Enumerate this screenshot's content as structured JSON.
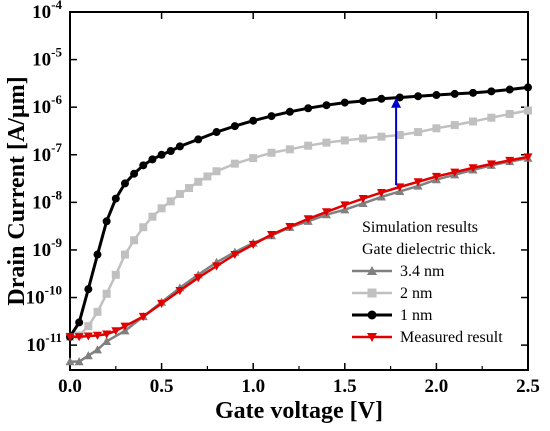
{
  "chart_data": {
    "type": "line",
    "title": "",
    "xlabel": "Gate voltage [V]",
    "ylabel": "Drain Current [A/μm]",
    "xlim": [
      0.0,
      2.5
    ],
    "ylim": [
      3e-12,
      0.0001
    ],
    "yscale": "log",
    "x_ticks": [
      0.0,
      0.5,
      1.0,
      1.5,
      2.0,
      2.5
    ],
    "x_tick_labels": [
      "0.0",
      "0.5",
      "1.0",
      "1.5",
      "2.0",
      "2.5"
    ],
    "y_ticks": [
      -11,
      -10,
      -9,
      -8,
      -7,
      -6,
      -5,
      -4
    ],
    "y_tick_labels": [
      {
        "base": "10",
        "exp": "-11"
      },
      {
        "base": "10",
        "exp": "-10"
      },
      {
        "base": "10",
        "exp": "-9"
      },
      {
        "base": "10",
        "exp": "-8"
      },
      {
        "base": "10",
        "exp": "-7"
      },
      {
        "base": "10",
        "exp": "-6"
      },
      {
        "base": "10",
        "exp": "-5"
      },
      {
        "base": "10",
        "exp": "-4"
      }
    ],
    "grid": false,
    "legend": {
      "placement": "bottom-right",
      "heading": [
        "Simulation results",
        "Gate dielectric thick."
      ]
    },
    "series": [
      {
        "name": "3.4 nm",
        "color": "#808080",
        "marker": "triangle-up",
        "x": [
          0.0,
          0.05,
          0.1,
          0.15,
          0.2,
          0.3,
          0.4,
          0.5,
          0.6,
          0.7,
          0.8,
          0.9,
          1.0,
          1.1,
          1.2,
          1.3,
          1.4,
          1.5,
          1.6,
          1.7,
          1.8,
          1.9,
          2.0,
          2.1,
          2.2,
          2.3,
          2.4,
          2.5
        ],
        "y": [
          4.5e-12,
          4.5e-12,
          6e-12,
          8e-12,
          1.2e-11,
          2e-11,
          4e-11,
          8e-11,
          1.6e-10,
          3e-10,
          5.5e-10,
          9e-10,
          1.4e-09,
          2e-09,
          3e-09,
          4e-09,
          5.5e-09,
          7e-09,
          9.5e-09,
          1.3e-08,
          1.7e-08,
          2.2e-08,
          3e-08,
          3.8e-08,
          4.8e-08,
          6e-08,
          7.2e-08,
          8.5e-08
        ]
      },
      {
        "name": "2 nm",
        "color": "#c0c0c0",
        "marker": "square",
        "x": [
          0.0,
          0.05,
          0.1,
          0.15,
          0.2,
          0.25,
          0.3,
          0.35,
          0.4,
          0.45,
          0.5,
          0.55,
          0.6,
          0.65,
          0.7,
          0.75,
          0.8,
          0.9,
          1.0,
          1.1,
          1.2,
          1.3,
          1.4,
          1.5,
          1.6,
          1.7,
          1.8,
          1.9,
          2.0,
          2.1,
          2.2,
          2.3,
          2.4,
          2.5
        ],
        "y": [
          1.5e-11,
          1.6e-11,
          2.5e-11,
          5e-11,
          1.2e-10,
          3e-10,
          8e-10,
          1.6e-09,
          3e-09,
          5e-09,
          7.5e-09,
          1.05e-08,
          1.5e-08,
          2e-08,
          2.7e-08,
          3.5e-08,
          4.5e-08,
          6.5e-08,
          8.5e-08,
          1.1e-07,
          1.3e-07,
          1.55e-07,
          1.8e-07,
          2e-07,
          2.2e-07,
          2.4e-07,
          2.6e-07,
          3e-07,
          3.6e-07,
          4.2e-07,
          5e-07,
          6e-07,
          7.2e-07,
          8.5e-07
        ]
      },
      {
        "name": "1 nm",
        "color": "#000000",
        "marker": "circle",
        "x": [
          0.0,
          0.05,
          0.1,
          0.15,
          0.2,
          0.25,
          0.3,
          0.35,
          0.4,
          0.45,
          0.5,
          0.55,
          0.6,
          0.7,
          0.8,
          0.9,
          1.0,
          1.1,
          1.2,
          1.3,
          1.4,
          1.5,
          1.6,
          1.7,
          1.8,
          1.9,
          2.0,
          2.1,
          2.2,
          2.3,
          2.4,
          2.5
        ],
        "y": [
          1.5e-11,
          3e-11,
          1.5e-10,
          8e-10,
          4e-09,
          1.2e-08,
          2.5e-08,
          4e-08,
          6e-08,
          8e-08,
          1e-07,
          1.2e-07,
          1.5e-07,
          2.1e-07,
          3e-07,
          4e-07,
          5.2e-07,
          6.5e-07,
          8e-07,
          9.5e-07,
          1.1e-06,
          1.25e-06,
          1.35e-06,
          1.5e-06,
          1.6e-06,
          1.7e-06,
          1.8e-06,
          1.9e-06,
          2e-06,
          2.15e-06,
          2.35e-06,
          2.6e-06
        ]
      },
      {
        "name": "Measured result",
        "color": "#e00000",
        "marker": "triangle-down",
        "x": [
          0.0,
          0.05,
          0.1,
          0.15,
          0.2,
          0.25,
          0.3,
          0.4,
          0.5,
          0.6,
          0.7,
          0.8,
          0.9,
          1.0,
          1.1,
          1.2,
          1.3,
          1.4,
          1.5,
          1.6,
          1.7,
          1.8,
          1.9,
          2.0,
          2.1,
          2.2,
          2.3,
          2.4,
          2.5
        ],
        "y": [
          1.5e-11,
          1.5e-11,
          1.55e-11,
          1.6e-11,
          1.7e-11,
          2e-11,
          2.5e-11,
          4e-11,
          7.5e-11,
          1.4e-10,
          2.6e-10,
          4.6e-10,
          8e-10,
          1.3e-09,
          2.1e-09,
          3.1e-09,
          4.5e-09,
          6.3e-09,
          8.8e-09,
          1.2e-08,
          1.6e-08,
          2.1e-08,
          2.7e-08,
          3.5e-08,
          4.3e-08,
          5.3e-08,
          6.4e-08,
          7.6e-08,
          9e-08
        ]
      }
    ],
    "annotations": [
      {
        "type": "arrow",
        "color": "#0000cc",
        "x": 1.78,
        "y_from": 2.3e-08,
        "y_to": 1.5e-06
      }
    ]
  }
}
